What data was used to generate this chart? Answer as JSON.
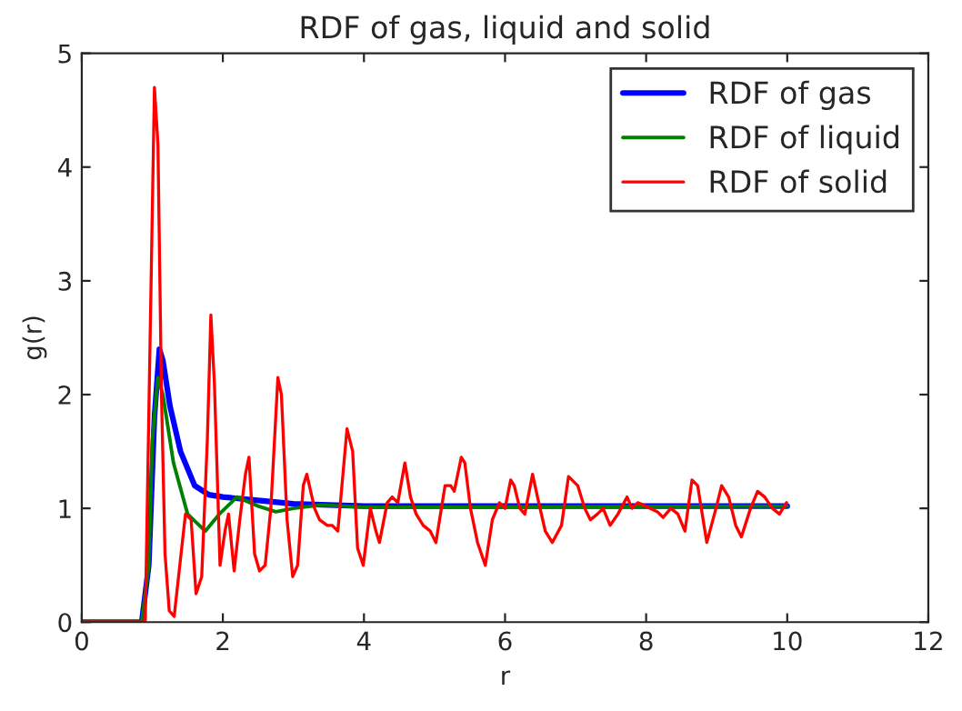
{
  "chart_data": {
    "type": "line",
    "title": "RDF of gas, liquid and solid",
    "xlabel": "r",
    "ylabel": "g(r)",
    "xlim": [
      0,
      12
    ],
    "ylim": [
      0,
      5
    ],
    "xticks": [
      0,
      2,
      4,
      6,
      8,
      10,
      12
    ],
    "yticks": [
      0,
      1,
      2,
      3,
      4,
      5
    ],
    "grid": false,
    "legend": "top right",
    "marker": "none",
    "line_style": "solid",
    "series": [
      {
        "name": "RDF of gas",
        "color": "#0000ff",
        "x": [
          0,
          0.85,
          0.95,
          1.03,
          1.1,
          1.15,
          1.25,
          1.4,
          1.6,
          1.8,
          2.0,
          2.5,
          3.0,
          4.0,
          10.0
        ],
        "values": [
          0,
          0,
          0.5,
          1.8,
          2.4,
          2.3,
          1.9,
          1.5,
          1.2,
          1.12,
          1.1,
          1.07,
          1.04,
          1.02,
          1.02
        ]
      },
      {
        "name": "RDF of liquid",
        "color": "#008000",
        "x": [
          0,
          0.85,
          0.95,
          1.0,
          1.08,
          1.15,
          1.3,
          1.5,
          1.75,
          1.95,
          2.2,
          2.5,
          2.75,
          3.0,
          3.4,
          4.0,
          10.0
        ],
        "values": [
          0,
          0,
          0.5,
          1.6,
          2.15,
          2.0,
          1.4,
          0.95,
          0.8,
          0.95,
          1.1,
          1.02,
          0.97,
          1.0,
          1.03,
          1.01,
          1.02
        ]
      },
      {
        "name": "RDF of solid",
        "color": "#ff0000",
        "x": [
          0,
          0.9,
          1.03,
          1.08,
          1.13,
          1.18,
          1.24,
          1.31,
          1.39,
          1.47,
          1.55,
          1.62,
          1.7,
          1.78,
          1.83,
          1.88,
          1.96,
          2.03,
          2.08,
          2.16,
          2.24,
          2.32,
          2.37,
          2.45,
          2.52,
          2.6,
          2.68,
          2.78,
          2.83,
          2.91,
          2.99,
          3.06,
          3.14,
          3.19,
          3.3,
          3.37,
          3.48,
          3.55,
          3.63,
          3.76,
          3.84,
          3.91,
          3.99,
          4.09,
          4.17,
          4.22,
          4.33,
          4.4,
          4.48,
          4.58,
          4.66,
          4.74,
          4.84,
          4.94,
          5.02,
          5.15,
          5.23,
          5.28,
          5.38,
          5.43,
          5.51,
          5.61,
          5.72,
          5.82,
          5.92,
          6.0,
          6.08,
          6.13,
          6.21,
          6.28,
          6.39,
          6.46,
          6.57,
          6.67,
          6.8,
          6.9,
          7.03,
          7.13,
          7.21,
          7.31,
          7.39,
          7.49,
          7.6,
          7.73,
          7.8,
          7.88,
          7.96,
          8.06,
          8.16,
          8.24,
          8.35,
          8.45,
          8.55,
          8.65,
          8.73,
          8.86,
          8.99,
          9.07,
          9.17,
          9.27,
          9.35,
          9.48,
          9.58,
          9.68,
          9.79,
          9.89,
          9.99
        ],
        "values": [
          0,
          0,
          4.7,
          4.2,
          2.0,
          0.6,
          0.1,
          0.05,
          0.5,
          0.95,
          0.9,
          0.25,
          0.4,
          1.6,
          2.7,
          2.1,
          0.5,
          0.8,
          0.95,
          0.45,
          0.9,
          1.3,
          1.45,
          0.6,
          0.45,
          0.5,
          1.0,
          2.15,
          2.0,
          0.9,
          0.4,
          0.5,
          1.2,
          1.3,
          1.0,
          0.9,
          0.85,
          0.85,
          0.8,
          1.7,
          1.5,
          0.65,
          0.5,
          1.0,
          0.8,
          0.7,
          1.05,
          1.1,
          1.05,
          1.4,
          1.1,
          0.95,
          0.85,
          0.8,
          0.7,
          1.2,
          1.2,
          1.15,
          1.45,
          1.4,
          1.0,
          0.7,
          0.5,
          0.9,
          1.05,
          1.0,
          1.25,
          1.2,
          1.0,
          0.95,
          1.3,
          1.1,
          0.8,
          0.7,
          0.85,
          1.28,
          1.2,
          1.0,
          0.9,
          0.95,
          1.0,
          0.85,
          0.95,
          1.1,
          1.0,
          1.05,
          1.03,
          1.0,
          0.97,
          0.92,
          1.0,
          0.95,
          0.8,
          1.25,
          1.2,
          0.7,
          1.0,
          1.2,
          1.1,
          0.85,
          0.75,
          1.0,
          1.15,
          1.1,
          1.0,
          0.95,
          1.05
        ]
      }
    ]
  }
}
